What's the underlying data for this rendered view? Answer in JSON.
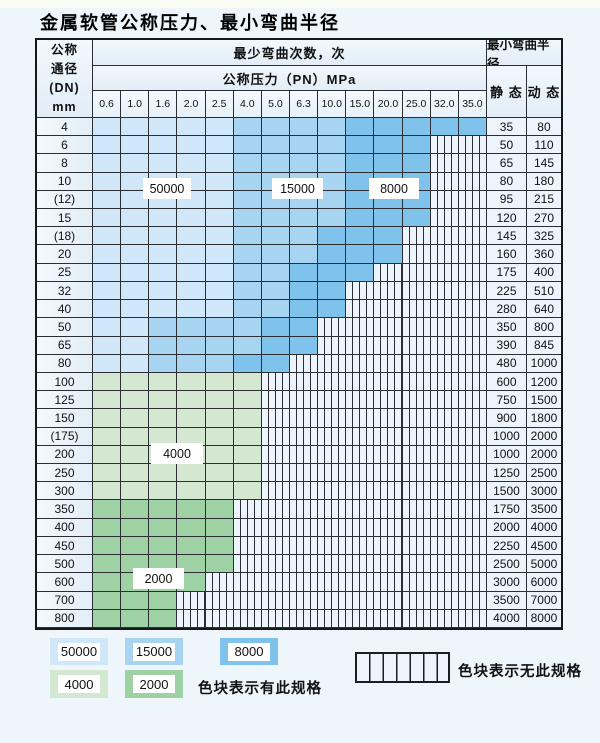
{
  "title": "金属软管公称压力、最小弯曲半径",
  "header": {
    "dn_lines": [
      "公称",
      "通径",
      "(DN)",
      "mm"
    ],
    "bend_cycles_label": "最少弯曲次数，次",
    "pressure_label": "公称压力（PN）MPa",
    "min_radius_label": "最小弯曲半径",
    "static_label": "静 态",
    "dynamic_label": "动 态",
    "pressures": [
      "0.6",
      "1.0",
      "1.6",
      "2.0",
      "2.5",
      "4.0",
      "5.0",
      "6.3",
      "10.0",
      "15.0",
      "20.0",
      "25.0",
      "32.0",
      "35.0"
    ]
  },
  "band_legend_meaning": {
    "L": "50000次弯曲",
    "M": "15000次弯曲",
    "D": "8000次弯曲",
    "G": "4000次弯曲",
    "g": "2000次弯曲",
    "H": "无此规格"
  },
  "rows": [
    {
      "dn": "4",
      "cells": "LLLLLMMMMDDDDD",
      "static": "35",
      "dynamic": "80"
    },
    {
      "dn": "6",
      "cells": "LLLLLMMMMDDDHH",
      "static": "50",
      "dynamic": "110"
    },
    {
      "dn": "8",
      "cells": "LLLLLMMMMDDDHH",
      "static": "65",
      "dynamic": "145"
    },
    {
      "dn": "10",
      "cells": "LLLLLMMMMDDDHH",
      "static": "80",
      "dynamic": "180"
    },
    {
      "dn": "(12)",
      "cells": "LLLLLMMMMDDDHH",
      "static": "95",
      "dynamic": "215"
    },
    {
      "dn": "15",
      "cells": "LLLLLMMMMDDDHH",
      "static": "120",
      "dynamic": "270"
    },
    {
      "dn": "(18)",
      "cells": "LLLLLMMMDDDHHH",
      "static": "145",
      "dynamic": "325"
    },
    {
      "dn": "20",
      "cells": "LLLLLMMMDDDHHH",
      "static": "160",
      "dynamic": "360"
    },
    {
      "dn": "25",
      "cells": "LLLLLMMDDDHHHH",
      "static": "175",
      "dynamic": "400"
    },
    {
      "dn": "32",
      "cells": "LLLLLMMDDHHHHH",
      "static": "225",
      "dynamic": "510"
    },
    {
      "dn": "40",
      "cells": "LLLLLMMDDHHHHH",
      "static": "280",
      "dynamic": "640"
    },
    {
      "dn": "50",
      "cells": "LLMMMMDDHHHHHH",
      "static": "350",
      "dynamic": "800"
    },
    {
      "dn": "65",
      "cells": "LLMMMMDDHHHHHH",
      "static": "390",
      "dynamic": "845"
    },
    {
      "dn": "80",
      "cells": "LLMMMDDHHHHHHH",
      "static": "480",
      "dynamic": "1000"
    },
    {
      "dn": "100",
      "cells": "GGGGGGHHHHHHHH",
      "static": "600",
      "dynamic": "1200"
    },
    {
      "dn": "125",
      "cells": "GGGGGGHHHHHHHH",
      "static": "750",
      "dynamic": "1500"
    },
    {
      "dn": "150",
      "cells": "GGGGGGHHHHHHHH",
      "static": "900",
      "dynamic": "1800"
    },
    {
      "dn": "(175)",
      "cells": "GGGGGGHHHHHHHH",
      "static": "1000",
      "dynamic": "2000"
    },
    {
      "dn": "200",
      "cells": "GGGGGGHHHHHHHH",
      "static": "1000",
      "dynamic": "2000"
    },
    {
      "dn": "250",
      "cells": "GGGGGGHHHHHHHH",
      "static": "1250",
      "dynamic": "2500"
    },
    {
      "dn": "300",
      "cells": "GGGGGGHHHHHHHH",
      "static": "1500",
      "dynamic": "3000"
    },
    {
      "dn": "350",
      "cells": "gggggHHHHHHHHH",
      "static": "1750",
      "dynamic": "3500"
    },
    {
      "dn": "400",
      "cells": "gggggHHHHHHHHH",
      "static": "2000",
      "dynamic": "4000"
    },
    {
      "dn": "450",
      "cells": "gggggHHHHHHHHH",
      "static": "2250",
      "dynamic": "4500"
    },
    {
      "dn": "500",
      "cells": "gggggHHHHHHHHH",
      "static": "2500",
      "dynamic": "5000"
    },
    {
      "dn": "600",
      "cells": "ggggHHHHHHHHHH",
      "static": "3000",
      "dynamic": "6000"
    },
    {
      "dn": "700",
      "cells": "gggHHHHHHHHHHH",
      "static": "3500",
      "dynamic": "7000"
    },
    {
      "dn": "800",
      "cells": "gggHHHHHHHHHHH",
      "static": "4000",
      "dynamic": "8000"
    }
  ],
  "overlays": [
    {
      "label": "50000"
    },
    {
      "label": "15000"
    },
    {
      "label": "8000"
    },
    {
      "label": "4000"
    },
    {
      "label": "2000"
    }
  ],
  "legend": {
    "items": [
      {
        "label": "50000",
        "code": "L"
      },
      {
        "label": "15000",
        "code": "M"
      },
      {
        "label": "8000",
        "code": "D"
      },
      {
        "label": "4000",
        "code": "G"
      },
      {
        "label": "2000",
        "code": "g"
      }
    ],
    "available_note": "色块表示有此规格",
    "unavailable_note": "色块表示无此规格"
  },
  "colors": {
    "light_blue": "#cfe7f8",
    "medium_blue": "#a6d4f1",
    "dark_blue": "#7fc3ec",
    "light_green": "#d4e8d1",
    "medium_green": "#9ed2a5",
    "hatch_bg": "#edf4fb",
    "grid_line": "#2b2f33"
  }
}
